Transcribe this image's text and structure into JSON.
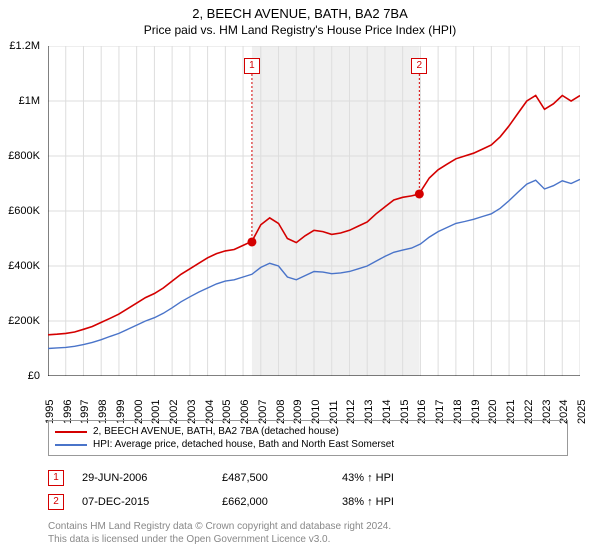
{
  "title": "2, BEECH AVENUE, BATH, BA2 7BA",
  "subtitle": "Price paid vs. HM Land Registry's House Price Index (HPI)",
  "chart": {
    "type": "line",
    "background_color": "#ffffff",
    "grid_color": "#dddddd",
    "shaded_band_color": "#f0f0f0",
    "shaded_band": {
      "x_start": 2006.5,
      "x_end": 2015.94
    },
    "xlim": [
      1995,
      2025
    ],
    "ylim": [
      0,
      1200000
    ],
    "x_ticks": [
      1995,
      1996,
      1997,
      1998,
      1999,
      2000,
      2001,
      2002,
      2003,
      2004,
      2005,
      2006,
      2007,
      2008,
      2009,
      2010,
      2011,
      2012,
      2013,
      2014,
      2015,
      2016,
      2017,
      2018,
      2019,
      2020,
      2021,
      2022,
      2023,
      2024,
      2025
    ],
    "y_ticks": [
      {
        "v": 0,
        "label": "£0"
      },
      {
        "v": 200000,
        "label": "£200K"
      },
      {
        "v": 400000,
        "label": "£400K"
      },
      {
        "v": 600000,
        "label": "£600K"
      },
      {
        "v": 800000,
        "label": "£800K"
      },
      {
        "v": 1000000,
        "label": "£1M"
      },
      {
        "v": 1200000,
        "label": "£1.2M"
      }
    ],
    "series": [
      {
        "name": "price_paid",
        "color": "#d40000",
        "width": 1.6,
        "points": [
          [
            1995,
            150000
          ],
          [
            1995.5,
            152000
          ],
          [
            1996,
            155000
          ],
          [
            1996.5,
            160000
          ],
          [
            1997,
            170000
          ],
          [
            1997.5,
            180000
          ],
          [
            1998,
            195000
          ],
          [
            1998.5,
            210000
          ],
          [
            1999,
            225000
          ],
          [
            1999.5,
            245000
          ],
          [
            2000,
            265000
          ],
          [
            2000.5,
            285000
          ],
          [
            2001,
            300000
          ],
          [
            2001.5,
            320000
          ],
          [
            2002,
            345000
          ],
          [
            2002.5,
            370000
          ],
          [
            2003,
            390000
          ],
          [
            2003.5,
            410000
          ],
          [
            2004,
            430000
          ],
          [
            2004.5,
            445000
          ],
          [
            2005,
            455000
          ],
          [
            2005.5,
            460000
          ],
          [
            2006,
            475000
          ],
          [
            2006.5,
            490000
          ],
          [
            2007,
            550000
          ],
          [
            2007.5,
            575000
          ],
          [
            2008,
            555000
          ],
          [
            2008.5,
            500000
          ],
          [
            2009,
            485000
          ],
          [
            2009.5,
            510000
          ],
          [
            2010,
            530000
          ],
          [
            2010.5,
            525000
          ],
          [
            2011,
            515000
          ],
          [
            2011.5,
            520000
          ],
          [
            2012,
            530000
          ],
          [
            2012.5,
            545000
          ],
          [
            2013,
            560000
          ],
          [
            2013.5,
            590000
          ],
          [
            2014,
            615000
          ],
          [
            2014.5,
            640000
          ],
          [
            2015,
            650000
          ],
          [
            2015.5,
            655000
          ],
          [
            2015.94,
            662000
          ],
          [
            2016,
            670000
          ],
          [
            2016.5,
            720000
          ],
          [
            2017,
            750000
          ],
          [
            2017.5,
            770000
          ],
          [
            2018,
            790000
          ],
          [
            2018.5,
            800000
          ],
          [
            2019,
            810000
          ],
          [
            2019.5,
            825000
          ],
          [
            2020,
            840000
          ],
          [
            2020.5,
            870000
          ],
          [
            2021,
            910000
          ],
          [
            2021.5,
            955000
          ],
          [
            2022,
            1000000
          ],
          [
            2022.5,
            1020000
          ],
          [
            2023,
            970000
          ],
          [
            2023.5,
            990000
          ],
          [
            2024,
            1020000
          ],
          [
            2024.5,
            1000000
          ],
          [
            2025,
            1020000
          ]
        ]
      },
      {
        "name": "hpi",
        "color": "#4a74c9",
        "width": 1.4,
        "points": [
          [
            1995,
            100000
          ],
          [
            1995.5,
            102000
          ],
          [
            1996,
            104000
          ],
          [
            1996.5,
            108000
          ],
          [
            1997,
            114000
          ],
          [
            1997.5,
            122000
          ],
          [
            1998,
            132000
          ],
          [
            1998.5,
            144000
          ],
          [
            1999,
            155000
          ],
          [
            1999.5,
            170000
          ],
          [
            2000,
            185000
          ],
          [
            2000.5,
            200000
          ],
          [
            2001,
            212000
          ],
          [
            2001.5,
            228000
          ],
          [
            2002,
            248000
          ],
          [
            2002.5,
            270000
          ],
          [
            2003,
            288000
          ],
          [
            2003.5,
            305000
          ],
          [
            2004,
            320000
          ],
          [
            2004.5,
            335000
          ],
          [
            2005,
            345000
          ],
          [
            2005.5,
            350000
          ],
          [
            2006,
            360000
          ],
          [
            2006.5,
            370000
          ],
          [
            2007,
            395000
          ],
          [
            2007.5,
            410000
          ],
          [
            2008,
            400000
          ],
          [
            2008.5,
            360000
          ],
          [
            2009,
            350000
          ],
          [
            2009.5,
            365000
          ],
          [
            2010,
            380000
          ],
          [
            2010.5,
            378000
          ],
          [
            2011,
            372000
          ],
          [
            2011.5,
            375000
          ],
          [
            2012,
            380000
          ],
          [
            2012.5,
            390000
          ],
          [
            2013,
            400000
          ],
          [
            2013.5,
            418000
          ],
          [
            2014,
            435000
          ],
          [
            2014.5,
            450000
          ],
          [
            2015,
            458000
          ],
          [
            2015.5,
            465000
          ],
          [
            2016,
            480000
          ],
          [
            2016.5,
            505000
          ],
          [
            2017,
            525000
          ],
          [
            2017.5,
            540000
          ],
          [
            2018,
            555000
          ],
          [
            2018.5,
            562000
          ],
          [
            2019,
            570000
          ],
          [
            2019.5,
            580000
          ],
          [
            2020,
            590000
          ],
          [
            2020.5,
            610000
          ],
          [
            2021,
            638000
          ],
          [
            2021.5,
            668000
          ],
          [
            2022,
            698000
          ],
          [
            2022.5,
            712000
          ],
          [
            2023,
            680000
          ],
          [
            2023.5,
            692000
          ],
          [
            2024,
            710000
          ],
          [
            2024.5,
            700000
          ],
          [
            2025,
            715000
          ]
        ]
      }
    ],
    "sale_markers": [
      {
        "n": "1",
        "x": 2006.5,
        "y": 487500,
        "label_x": 2006.5,
        "label_y_top": 12,
        "color": "#d40000"
      },
      {
        "n": "2",
        "x": 2015.94,
        "y": 662000,
        "label_x": 2015.94,
        "label_y_top": 12,
        "color": "#d40000"
      }
    ]
  },
  "legend": {
    "items": [
      {
        "color": "#d40000",
        "label": "2, BEECH AVENUE, BATH, BA2 7BA (detached house)"
      },
      {
        "color": "#4a74c9",
        "label": "HPI: Average price, detached house, Bath and North East Somerset"
      }
    ]
  },
  "sales": [
    {
      "n": "1",
      "color": "#d40000",
      "date": "29-JUN-2006",
      "price": "£487,500",
      "hpi": "43% ↑ HPI"
    },
    {
      "n": "2",
      "color": "#d40000",
      "date": "07-DEC-2015",
      "price": "£662,000",
      "hpi": "38% ↑ HPI"
    }
  ],
  "footer": {
    "line1": "Contains HM Land Registry data © Crown copyright and database right 2024.",
    "line2": "This data is licensed under the Open Government Licence v3.0."
  }
}
